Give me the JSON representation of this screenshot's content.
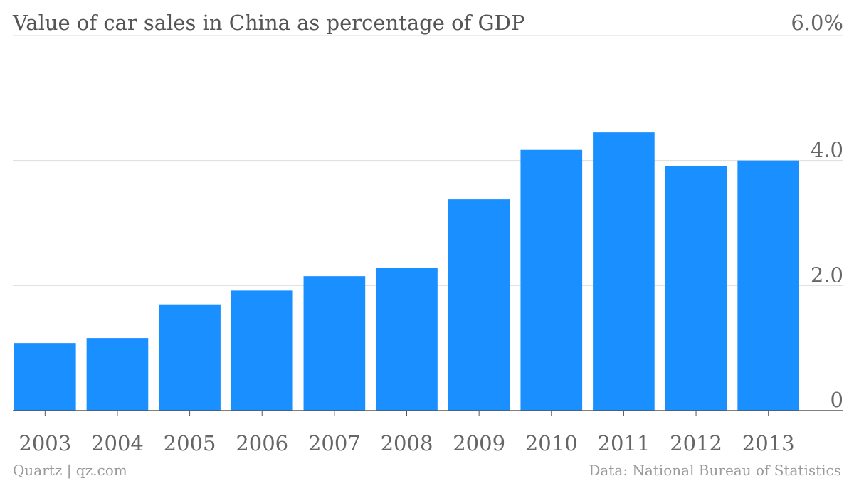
{
  "colors": {
    "bar": "#1a8fff",
    "grid": "#dddddd",
    "axis": "#555555",
    "title": "#555555",
    "ticks": "#666666",
    "footer": "#9a9a9a"
  },
  "chart_data": {
    "type": "bar",
    "title": "Value of car sales in China as percentage of GDP",
    "categories": [
      "2003",
      "2004",
      "2005",
      "2006",
      "2007",
      "2008",
      "2009",
      "2010",
      "2011",
      "2012",
      "2013"
    ],
    "series": [
      {
        "values": [
          1.08,
          1.16,
          1.7,
          1.92,
          2.15,
          2.28,
          3.38,
          4.17,
          4.45,
          3.91,
          4.0
        ]
      }
    ],
    "ylim": [
      0,
      6.0
    ],
    "yticks": [
      {
        "value": 0,
        "label": "0"
      },
      {
        "value": 2.0,
        "label": "2.0"
      },
      {
        "value": 4.0,
        "label": "4.0"
      },
      {
        "value": 6.0,
        "label": "6.0%"
      }
    ],
    "grid": true,
    "yaxis_position": "right"
  },
  "footer": {
    "source_left": "Quartz | qz.com",
    "source_right": "Data: National Bureau of Statistics"
  }
}
